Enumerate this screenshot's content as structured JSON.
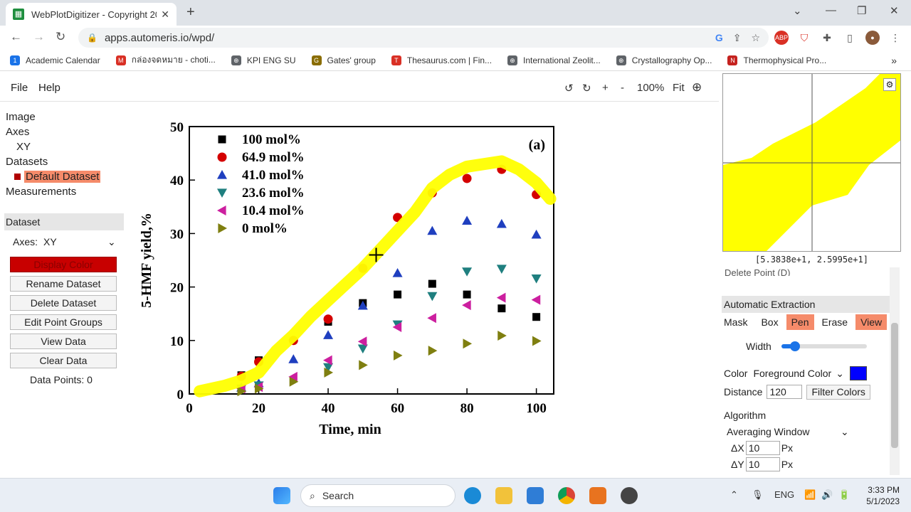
{
  "browser": {
    "tab_title": "WebPlotDigitizer - Copyright 20",
    "tab_close": "✕",
    "new_tab": "+",
    "url": "apps.automeris.io/wpd/",
    "bookmarks": [
      {
        "label": "Academic Calendar",
        "color": "#1a73e8",
        "icon": "1"
      },
      {
        "label": "กล่องจดหมาย - choti...",
        "color": "#d93025",
        "icon": "M"
      },
      {
        "label": "KPI ENG SU",
        "color": "#5f6368",
        "icon": "⊕"
      },
      {
        "label": "Gates' group",
        "color": "#8a6d00",
        "icon": "G"
      },
      {
        "label": "Thesaurus.com | Fin...",
        "color": "#d93025",
        "icon": "T"
      },
      {
        "label": "International Zeolit...",
        "color": "#5f6368",
        "icon": "⊕"
      },
      {
        "label": "Crystallography Op...",
        "color": "#5f6368",
        "icon": "⊕"
      },
      {
        "label": "Thermophysical Pro...",
        "color": "#c5221f",
        "icon": "N"
      }
    ],
    "more": "»"
  },
  "menubar": {
    "file": "File",
    "help": "Help",
    "zoom_level": "100%",
    "fit": "Fit"
  },
  "tree": {
    "image": "Image",
    "axes": "Axes",
    "xy": "XY",
    "datasets": "Datasets",
    "default_dataset": "Default Dataset",
    "measurements": "Measurements"
  },
  "dataset_panel": {
    "header": "Dataset",
    "axes_label": "Axes:",
    "axes_value": "XY",
    "display_color": "Display Color",
    "rename": "Rename Dataset",
    "delete": "Delete Dataset",
    "edit_groups": "Edit Point Groups",
    "view_data": "View Data",
    "clear_data": "Clear Data",
    "data_points": "Data Points: 0"
  },
  "zoom_view": {
    "coords": "[5.3838e+1, 2.5995e+1]"
  },
  "right_panel": {
    "partial_button": "Delete Point (D)",
    "auto_extraction": "Automatic Extraction",
    "mask_label": "Mask",
    "mask_modes": [
      "Box",
      "Pen",
      "Erase",
      "View"
    ],
    "width_label": "Width",
    "width_fraction": 0.1,
    "color_label": "Color",
    "color_mode": "Foreground Color",
    "color_value": "#0000ff",
    "distance_label": "Distance",
    "distance_value": "120",
    "filter_colors": "Filter Colors",
    "algorithm_label": "Algorithm",
    "algorithm_value": "Averaging Window",
    "dx_label": "ΔX",
    "dx_value": "10",
    "dy_label": "ΔY",
    "dy_value": "10",
    "px": "Px"
  },
  "chart_data": {
    "type": "scatter",
    "panel_label": "(a)",
    "xlabel": "Time, min",
    "ylabel": "5-HMF yield,%",
    "xlim": [
      0,
      105
    ],
    "ylim": [
      0,
      50
    ],
    "xticks": [
      0,
      20,
      40,
      60,
      80,
      100
    ],
    "yticks": [
      0,
      10,
      20,
      30,
      40,
      50
    ],
    "legend_position": "top-left",
    "series": [
      {
        "name": "100 mol%",
        "marker": "square",
        "color": "#000000",
        "x": [
          15,
          20,
          40,
          50,
          60,
          70,
          80,
          90,
          100
        ],
        "y": [
          3.5,
          6.3,
          13.5,
          17,
          18.6,
          20.6,
          18.6,
          16,
          14.4
        ]
      },
      {
        "name": "64.9 mol%",
        "marker": "circle",
        "color": "#d40000",
        "x": [
          15,
          20,
          30,
          40,
          50,
          60,
          70,
          80,
          90,
          100
        ],
        "y": [
          3.3,
          6,
          10,
          14,
          23.5,
          33,
          37.6,
          40.3,
          42,
          37.3
        ]
      },
      {
        "name": "41.0 mol%",
        "marker": "triangle-up",
        "color": "#1f3fbf",
        "x": [
          15,
          20,
          30,
          40,
          50,
          60,
          70,
          80,
          90,
          100
        ],
        "y": [
          1.2,
          2,
          6.5,
          11,
          16.5,
          22.6,
          30.5,
          32.4,
          31.8,
          29.8
        ]
      },
      {
        "name": "23.6 mol%",
        "marker": "triangle-down",
        "color": "#1f7f7f",
        "x": [
          15,
          20,
          40,
          50,
          60,
          70,
          80,
          90,
          100
        ],
        "y": [
          1,
          1.6,
          5,
          8.5,
          13,
          18.3,
          22.9,
          23.4,
          21.6
        ]
      },
      {
        "name": "10.4 mol%",
        "marker": "triangle-left",
        "color": "#cc1f9f",
        "x": [
          15,
          20,
          30,
          40,
          50,
          60,
          70,
          80,
          90,
          100
        ],
        "y": [
          1,
          1.3,
          3.2,
          6.3,
          9.8,
          12.5,
          14.2,
          16.6,
          18,
          17.6
        ]
      },
      {
        "name": "0 mol%",
        "marker": "triangle-right",
        "color": "#7f7f10",
        "x": [
          15,
          20,
          30,
          40,
          50,
          60,
          70,
          80,
          90,
          100
        ],
        "y": [
          0.5,
          1,
          2.3,
          4,
          5.4,
          7.2,
          8.1,
          9.4,
          10.9,
          9.9
        ]
      }
    ],
    "highlight_mask": {
      "color": "#ffff00",
      "x": [
        3,
        10,
        15,
        20,
        25,
        30,
        35,
        40,
        45,
        50,
        55,
        60,
        65,
        70,
        75,
        80,
        85,
        90,
        95,
        100,
        104
      ],
      "y": [
        0.5,
        1.5,
        2.5,
        4,
        8,
        11,
        14.5,
        17.5,
        20.5,
        23.5,
        27,
        30.5,
        34,
        38.5,
        41,
        42.5,
        43,
        43.5,
        42,
        39.5,
        36.5
      ]
    }
  },
  "taskbar": {
    "search": "Search",
    "lang": "ENG",
    "time": "3:33 PM",
    "date": "5/1/2023"
  }
}
